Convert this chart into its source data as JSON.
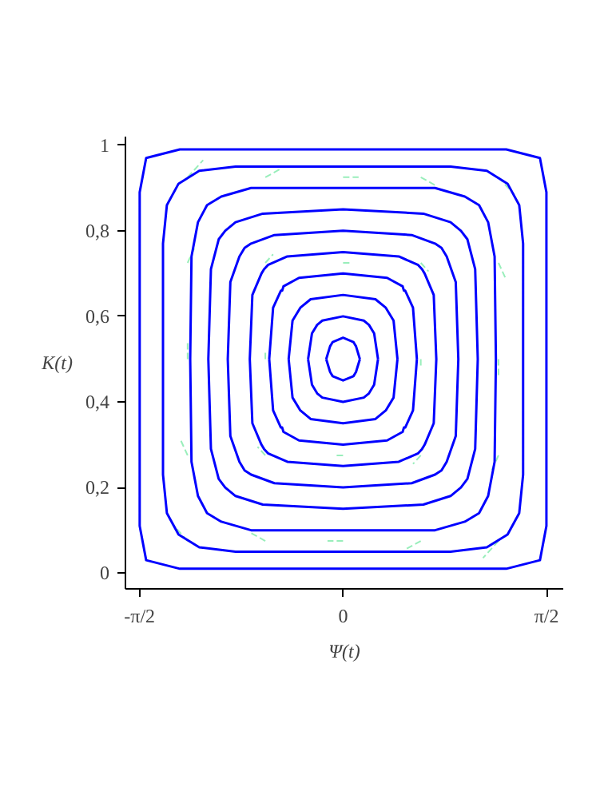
{
  "chart_data": {
    "type": "line",
    "xlabel": "Ψ(t)",
    "ylabel": "K(t)",
    "xlim": [
      -1.68,
      1.7
    ],
    "ylim": [
      -0.037,
      1.02
    ],
    "xticks": [
      {
        "value": -1.5708,
        "label": "-π/2"
      },
      0,
      {
        "value": 1.5708,
        "label": "π/2"
      }
    ],
    "yticks": [
      0,
      {
        "value": 0.2,
        "label": "0,2"
      },
      {
        "value": 0.4,
        "label": "0,4"
      },
      {
        "value": 0.6,
        "label": "0,6"
      },
      {
        "value": 0.8,
        "label": "0,8"
      },
      1
    ],
    "grid": false,
    "marker": "none",
    "line_style": "solid",
    "series": [
      {
        "color": "#99eebb",
        "line_style": "dashed",
        "x": [
          -1.2,
          -1.08,
          null,
          -0.6,
          -0.48,
          null,
          0,
          0.12,
          null,
          0.6,
          0.72,
          null,
          1.2,
          1.32,
          null,
          -1.2,
          -1.14,
          null,
          -0.6,
          -0.54,
          null,
          0,
          0.06,
          null,
          0.6,
          0.66,
          null,
          1.2,
          1.26,
          null,
          -1.2,
          -1.2,
          null,
          -0.6,
          -0.6,
          null,
          0.6,
          0.6,
          null,
          1.2,
          1.2,
          null,
          -1.2,
          -1.26,
          null,
          -0.6,
          -0.66,
          null,
          0,
          -0.06,
          null,
          0.6,
          0.54,
          null,
          1.2,
          1.14,
          null,
          -1.2,
          -1.32,
          null,
          -0.6,
          -0.72,
          null,
          0,
          -0.12,
          null,
          0.6,
          0.48,
          null,
          1.2,
          1.08
        ],
        "values": [
          0.925,
          0.965,
          null,
          0.925,
          0.945,
          null,
          0.925,
          0.925,
          null,
          0.925,
          0.905,
          null,
          0.925,
          0.885,
          null,
          0.725,
          0.765,
          null,
          0.725,
          0.745,
          null,
          0.725,
          0.725,
          null,
          0.725,
          0.705,
          null,
          0.725,
          0.685,
          null,
          0.5,
          0.54,
          null,
          0.5,
          0.52,
          null,
          0.5,
          0.48,
          null,
          0.5,
          0.46,
          null,
          0.275,
          0.315,
          null,
          0.275,
          0.295,
          null,
          0.275,
          0.275,
          null,
          0.275,
          0.255,
          null,
          0.275,
          0.235,
          null,
          0.075,
          0.115,
          null,
          0.075,
          0.095,
          null,
          0.075,
          0.075,
          null,
          0.075,
          0.055,
          null,
          0.075,
          0.035
        ]
      },
      {
        "color": "#0000ff",
        "x": [
          -1.57,
          -1.57,
          -1.57,
          -1.52,
          -1.26,
          -0.94,
          0,
          0.94,
          1.26,
          1.52,
          1.57,
          1.57,
          1.57,
          null,
          -1.57,
          -1.57,
          -1.57,
          -1.52,
          -1.26,
          -0.94,
          0,
          0.94,
          1.26,
          1.52,
          1.57,
          1.57,
          1.57,
          null,
          -1.39,
          -1.39,
          -1.36,
          -1.27,
          -1.11,
          -0.83,
          0,
          0.83,
          1.11,
          1.27,
          1.36,
          1.39,
          1.39,
          null,
          -1.39,
          -1.39,
          -1.36,
          -1.27,
          -1.11,
          -0.83,
          0,
          0.83,
          1.11,
          1.27,
          1.36,
          1.39,
          1.39,
          null,
          -1.18,
          -1.17,
          -1.12,
          -1.05,
          -0.94,
          -0.71,
          0,
          0.71,
          0.94,
          1.05,
          1.12,
          1.17,
          1.18,
          null,
          -1.18,
          -1.17,
          -1.12,
          -1.05,
          -0.94,
          -0.71,
          0,
          0.71,
          0.94,
          1.05,
          1.12,
          1.17,
          1.18,
          null,
          -1.04,
          -1.02,
          -0.96,
          -0.91,
          -0.83,
          -0.62,
          0,
          0.62,
          0.83,
          0.91,
          0.96,
          1.02,
          1.04,
          null,
          -1.04,
          -1.02,
          -0.96,
          -0.91,
          -0.83,
          -0.62,
          0,
          0.62,
          0.83,
          0.91,
          0.96,
          1.02,
          1.04,
          null,
          -0.89,
          -0.87,
          -0.8,
          -0.76,
          -0.71,
          -0.53,
          0,
          0.53,
          0.71,
          0.76,
          0.8,
          0.87,
          0.89,
          null,
          -0.89,
          -0.87,
          -0.8,
          -0.76,
          -0.71,
          -0.53,
          0,
          0.53,
          0.71,
          0.76,
          0.8,
          0.87,
          0.89,
          null,
          -0.72,
          -0.7,
          -0.63,
          -0.61,
          -0.58,
          -0.43,
          0,
          0.43,
          0.58,
          0.61,
          0.63,
          0.7,
          0.72,
          null,
          -0.72,
          -0.7,
          -0.63,
          -0.61,
          -0.58,
          -0.43,
          0,
          0.43,
          0.58,
          0.61,
          0.63,
          0.7,
          0.72,
          null,
          -0.57,
          -0.54,
          -0.48,
          -0.47,
          -0.46,
          -0.34,
          0,
          0.34,
          0.46,
          0.47,
          0.48,
          0.54,
          0.57,
          null,
          -0.57,
          -0.54,
          -0.48,
          -0.47,
          -0.46,
          -0.34,
          0,
          0.34,
          0.46,
          0.47,
          0.48,
          0.54,
          0.57,
          null,
          -0.42,
          -0.39,
          -0.33,
          -0.25,
          0,
          0.25,
          0.33,
          0.39,
          0.42,
          null,
          -0.42,
          -0.39,
          -0.33,
          -0.25,
          0,
          0.25,
          0.33,
          0.39,
          0.42,
          null,
          -0.27,
          -0.24,
          -0.2,
          -0.16,
          0,
          0.16,
          0.2,
          0.24,
          0.27,
          null,
          -0.27,
          -0.24,
          -0.2,
          -0.16,
          0,
          0.16,
          0.2,
          0.24,
          0.27,
          null,
          -0.13,
          -0.1,
          -0.09,
          -0.08,
          0,
          0.08,
          0.09,
          0.1,
          0.13,
          null,
          -0.13,
          -0.1,
          -0.09,
          -0.08,
          0,
          0.08,
          0.09,
          0.1,
          0.13
        ],
        "values": [
          0.5,
          0.79,
          0.89,
          0.97,
          0.99,
          0.99,
          0.99,
          0.99,
          0.99,
          0.97,
          0.89,
          0.79,
          0.5,
          null,
          0.5,
          0.21,
          0.11,
          0.03,
          0.01,
          0.01,
          0.01,
          0.01,
          0.01,
          0.03,
          0.11,
          0.21,
          0.5,
          null,
          0.5,
          0.77,
          0.86,
          0.91,
          0.94,
          0.95,
          0.95,
          0.95,
          0.94,
          0.91,
          0.86,
          0.77,
          0.5,
          null,
          0.5,
          0.23,
          0.14,
          0.09,
          0.06,
          0.05,
          0.05,
          0.05,
          0.06,
          0.09,
          0.14,
          0.23,
          0.5,
          null,
          0.5,
          0.74,
          0.82,
          0.86,
          0.88,
          0.9,
          0.9,
          0.9,
          0.88,
          0.86,
          0.82,
          0.74,
          0.5,
          null,
          0.5,
          0.26,
          0.18,
          0.14,
          0.12,
          0.1,
          0.1,
          0.1,
          0.12,
          0.14,
          0.18,
          0.26,
          0.5,
          null,
          0.5,
          0.71,
          0.78,
          0.8,
          0.82,
          0.84,
          0.85,
          0.84,
          0.82,
          0.8,
          0.78,
          0.71,
          0.5,
          null,
          0.5,
          0.29,
          0.22,
          0.2,
          0.18,
          0.16,
          0.15,
          0.16,
          0.18,
          0.2,
          0.22,
          0.29,
          0.5,
          null,
          0.5,
          0.68,
          0.74,
          0.76,
          0.77,
          0.79,
          0.8,
          0.79,
          0.77,
          0.76,
          0.74,
          0.68,
          0.5,
          null,
          0.5,
          0.32,
          0.26,
          0.24,
          0.23,
          0.21,
          0.2,
          0.21,
          0.23,
          0.24,
          0.26,
          0.32,
          0.5,
          null,
          0.5,
          0.65,
          0.7,
          0.71,
          0.72,
          0.74,
          0.75,
          0.74,
          0.72,
          0.71,
          0.7,
          0.65,
          0.5,
          null,
          0.5,
          0.35,
          0.3,
          0.29,
          0.28,
          0.26,
          0.25,
          0.26,
          0.28,
          0.29,
          0.3,
          0.35,
          0.5,
          null,
          0.5,
          0.62,
          0.66,
          0.66,
          0.67,
          0.69,
          0.7,
          0.69,
          0.67,
          0.66,
          0.66,
          0.62,
          0.5,
          null,
          0.5,
          0.38,
          0.34,
          0.34,
          0.33,
          0.31,
          0.3,
          0.31,
          0.33,
          0.34,
          0.34,
          0.38,
          0.5,
          null,
          0.5,
          0.59,
          0.62,
          0.64,
          0.65,
          0.64,
          0.62,
          0.59,
          0.5,
          null,
          0.5,
          0.41,
          0.38,
          0.36,
          0.35,
          0.36,
          0.38,
          0.41,
          0.5,
          null,
          0.5,
          0.56,
          0.58,
          0.59,
          0.6,
          0.59,
          0.58,
          0.56,
          0.5,
          null,
          0.5,
          0.44,
          0.42,
          0.41,
          0.4,
          0.41,
          0.42,
          0.44,
          0.5,
          null,
          0.5,
          0.53,
          0.535,
          0.54,
          0.55,
          0.54,
          0.535,
          0.53,
          0.5,
          null,
          0.5,
          0.47,
          0.465,
          0.46,
          0.45,
          0.46,
          0.465,
          0.47,
          0.5
        ]
      }
    ]
  }
}
